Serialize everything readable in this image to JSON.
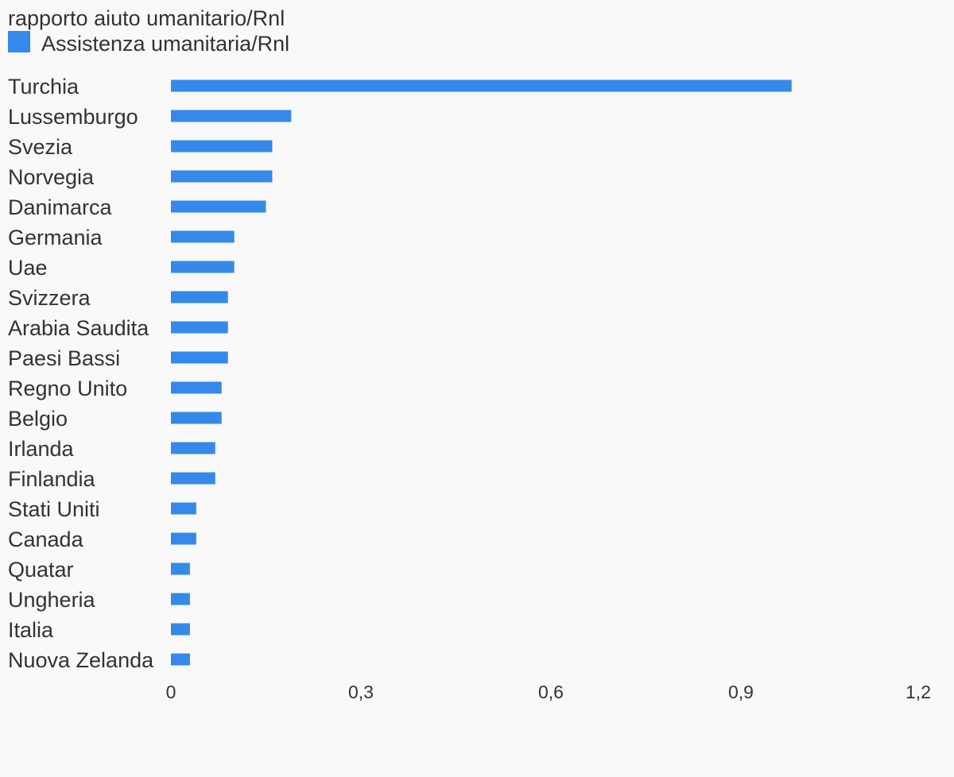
{
  "colors": {
    "background": "#f9f9f9",
    "bar": "#3589ea",
    "text": "#333333"
  },
  "chart_data": {
    "type": "bar",
    "orientation": "horizontal",
    "title": "rapporto aiuto umanitario/Rnl",
    "legend": "top-left",
    "categories": [
      "Turchia",
      "Lussemburgo",
      "Svezia",
      "Norvegia",
      "Danimarca",
      "Germania",
      "Uae",
      "Svizzera",
      "Arabia Saudita",
      "Paesi Bassi",
      "Regno Unito",
      "Belgio",
      "Irlanda",
      "Finlandia",
      "Stati Uniti",
      "Canada",
      "Quatar",
      "Ungheria",
      "Italia",
      "Nuova Zelanda"
    ],
    "series": [
      {
        "name": "Assistenza umanitaria/Rnl",
        "values": [
          0.98,
          0.19,
          0.16,
          0.16,
          0.15,
          0.1,
          0.1,
          0.09,
          0.09,
          0.09,
          0.08,
          0.08,
          0.07,
          0.07,
          0.04,
          0.04,
          0.03,
          0.03,
          0.03,
          0.03
        ]
      }
    ],
    "xlim": [
      0,
      1.2
    ],
    "xticks": [
      "0",
      "0,3",
      "0,6",
      "0,9",
      "1,2"
    ],
    "xtick_values": [
      0,
      0.3,
      0.6,
      0.9,
      1.2
    ],
    "grid": false
  }
}
